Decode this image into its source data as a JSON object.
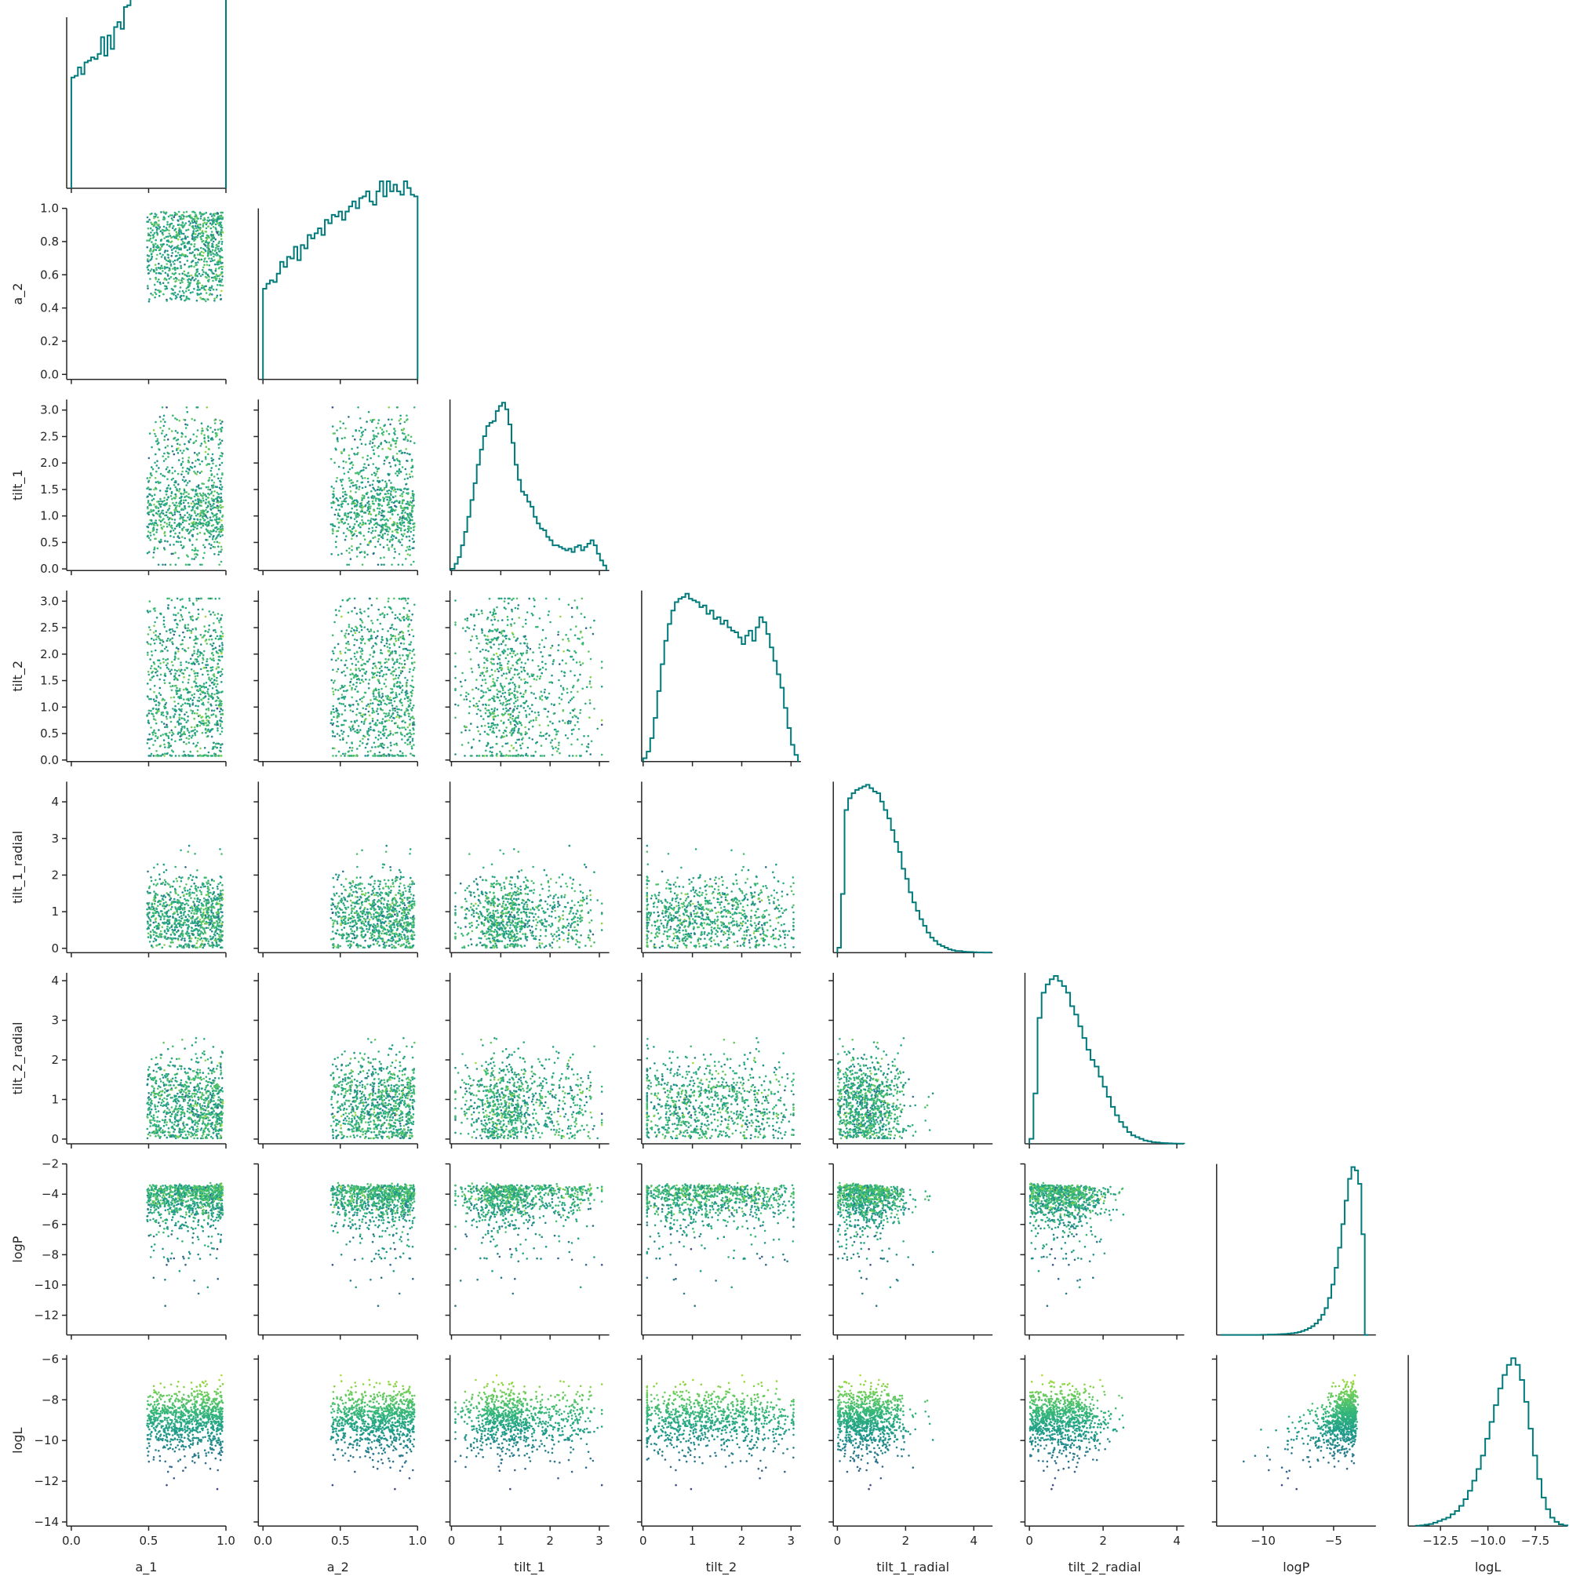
{
  "chart_data": {
    "type": "scatter",
    "kind": "corner-plot",
    "title": "",
    "variables": [
      "a_1",
      "a_2",
      "tilt_1",
      "tilt_2",
      "tilt_1_radial",
      "tilt_2_radial",
      "logP",
      "logL"
    ],
    "ranges": {
      "a_1": [
        -0.03,
        1.0
      ],
      "a_2": [
        -0.03,
        1.0
      ],
      "tilt_1": [
        -0.03,
        3.2
      ],
      "tilt_2": [
        -0.03,
        3.2
      ],
      "tilt_1_radial": [
        -0.12,
        4.55
      ],
      "tilt_2_radial": [
        -0.12,
        4.2
      ],
      "logP": [
        -13.3,
        -2.0
      ],
      "logL": [
        -14.2,
        -5.8
      ]
    },
    "ticks": {
      "a_1": {
        "values": [
          0,
          0.5,
          1.0
        ],
        "labels": [
          "0.0",
          "0.5",
          "1.0"
        ]
      },
      "a_2": {
        "values": [
          0,
          0.2,
          0.4,
          0.6,
          0.8,
          1.0
        ],
        "labels": [
          "0.0",
          "0.2",
          "0.4",
          "0.6",
          "0.8",
          "1.0"
        ]
      },
      "a_2_x": {
        "values": [
          0,
          0.5,
          1.0
        ],
        "labels": [
          "0.0",
          "0.5",
          "1.0"
        ]
      },
      "tilt_1": {
        "values": [
          0,
          0.5,
          1.0,
          1.5,
          2.0,
          2.5,
          3.0
        ],
        "labels": [
          "0.0",
          "0.5",
          "1.0",
          "1.5",
          "2.0",
          "2.5",
          "3.0"
        ]
      },
      "tilt_1_x": {
        "values": [
          0,
          1,
          2,
          3
        ],
        "labels": [
          "0",
          "1",
          "2",
          "3"
        ]
      },
      "tilt_2": {
        "values": [
          0,
          0.5,
          1.0,
          1.5,
          2.0,
          2.5,
          3.0
        ],
        "labels": [
          "0.0",
          "0.5",
          "1.0",
          "1.5",
          "2.0",
          "2.5",
          "3.0"
        ]
      },
      "tilt_2_x": {
        "values": [
          0,
          1,
          2,
          3
        ],
        "labels": [
          "0",
          "1",
          "2",
          "3"
        ]
      },
      "tilt_1_radial": {
        "values": [
          0,
          1,
          2,
          3,
          4
        ],
        "labels": [
          "0",
          "1",
          "2",
          "3",
          "4"
        ]
      },
      "tilt_1_radial_x": {
        "values": [
          0,
          2,
          4
        ],
        "labels": [
          "0",
          "2",
          "4"
        ]
      },
      "tilt_2_radial": {
        "values": [
          0,
          1,
          2,
          3,
          4
        ],
        "labels": [
          "0",
          "1",
          "2",
          "3",
          "4"
        ]
      },
      "tilt_2_radial_x": {
        "values": [
          0,
          2,
          4
        ],
        "labels": [
          "0",
          "2",
          "4"
        ]
      },
      "logP": {
        "values": [
          -12,
          -10,
          -8,
          -6,
          -4,
          -2
        ],
        "labels": [
          "−12",
          "−10",
          "−8",
          "−6",
          "−4",
          "−2"
        ]
      },
      "logP_x": {
        "values": [
          -10,
          -5
        ],
        "labels": [
          "−10",
          "−5"
        ]
      },
      "logL": {
        "values": [
          -14,
          -12,
          -10,
          -8,
          -6
        ],
        "labels": [
          "−14",
          "−12",
          "−10",
          "−8",
          "−6"
        ]
      },
      "logL_x": {
        "values": [
          -12.5,
          -10.0,
          -7.5
        ],
        "labels": [
          "−12.5",
          "−10.0",
          "−7.5"
        ]
      }
    },
    "histograms": {
      "a_1": [
        0.66,
        0.67,
        0.72,
        0.68,
        0.75,
        0.76,
        0.78,
        0.77,
        0.8,
        0.9,
        0.79,
        0.91,
        0.83,
        0.96,
        0.99,
        0.95,
        1.08,
        1.09,
        1.14,
        1.13,
        1.25,
        1.21,
        1.3,
        1.27,
        1.21,
        1.3,
        1.2,
        1.28,
        1.29,
        1.3,
        1.25,
        1.33,
        1.32,
        1.33,
        1.38,
        1.35,
        1.36,
        1.35,
        1.38,
        1.32,
        1.34,
        1.33,
        1.32,
        1.37,
        1.31,
        1.3,
        1.29
      ],
      "a_2": [
        0.54,
        0.57,
        0.59,
        0.58,
        0.63,
        0.7,
        0.67,
        0.73,
        0.72,
        0.79,
        0.71,
        0.8,
        0.78,
        0.86,
        0.84,
        0.87,
        0.9,
        0.86,
        0.95,
        0.93,
        0.98,
        0.97,
        1.0,
        0.95,
        1.0,
        1.03,
        1.06,
        1.02,
        1.08,
        1.09,
        1.12,
        1.06,
        1.04,
        1.12,
        1.18,
        1.09,
        1.18,
        1.12,
        1.16,
        1.12,
        1.1,
        1.18,
        1.14,
        1.1,
        1.09
      ],
      "tilt_1": [
        0.01,
        0.04,
        0.08,
        0.15,
        0.23,
        0.32,
        0.42,
        0.52,
        0.63,
        0.72,
        0.8,
        0.86,
        0.88,
        0.89,
        0.95,
        0.98,
        1.0,
        0.96,
        0.87,
        0.76,
        0.63,
        0.54,
        0.47,
        0.45,
        0.41,
        0.38,
        0.32,
        0.28,
        0.25,
        0.24,
        0.2,
        0.18,
        0.15,
        0.15,
        0.14,
        0.13,
        0.12,
        0.13,
        0.11,
        0.14,
        0.15,
        0.12,
        0.14,
        0.16,
        0.18,
        0.15,
        0.1,
        0.06,
        0.03
      ],
      "tilt_2": [
        0.02,
        0.06,
        0.14,
        0.26,
        0.42,
        0.58,
        0.72,
        0.82,
        0.9,
        0.95,
        0.97,
        0.98,
        1.0,
        0.97,
        0.96,
        0.95,
        0.92,
        0.93,
        0.88,
        0.9,
        0.85,
        0.86,
        0.82,
        0.84,
        0.8,
        0.78,
        0.77,
        0.74,
        0.7,
        0.75,
        0.78,
        0.72,
        0.8,
        0.86,
        0.83,
        0.76,
        0.68,
        0.6,
        0.52,
        0.44,
        0.32,
        0.2,
        0.1,
        0.04
      ],
      "tilt_1_radial": [
        0.03,
        0.35,
        0.85,
        0.92,
        0.95,
        0.97,
        0.98,
        0.99,
        1.0,
        0.98,
        0.96,
        0.95,
        0.9,
        0.85,
        0.8,
        0.73,
        0.66,
        0.6,
        0.5,
        0.44,
        0.36,
        0.3,
        0.25,
        0.2,
        0.16,
        0.12,
        0.09,
        0.07,
        0.05,
        0.04,
        0.03,
        0.02,
        0.015,
        0.01,
        0.01,
        0.006,
        0.005,
        0.004,
        0.003,
        0.002,
        0.002,
        0.001,
        0.001
      ],
      "tilt_2_radial": [
        0.03,
        0.3,
        0.75,
        0.9,
        0.95,
        0.98,
        1.0,
        0.97,
        0.94,
        0.9,
        0.82,
        0.77,
        0.7,
        0.63,
        0.56,
        0.5,
        0.46,
        0.4,
        0.34,
        0.28,
        0.22,
        0.17,
        0.13,
        0.1,
        0.07,
        0.05,
        0.04,
        0.03,
        0.02,
        0.015,
        0.01,
        0.008,
        0.005,
        0.004,
        0.003,
        0.002,
        0.001,
        0.001
      ],
      "logP": [
        0.0,
        0.0,
        0.0,
        0.0,
        0.0,
        0.0,
        0.0,
        0.0,
        0.0,
        0.0,
        0.0,
        0.0,
        0.001,
        0.001,
        0.002,
        0.002,
        0.003,
        0.004,
        0.005,
        0.006,
        0.008,
        0.01,
        0.013,
        0.017,
        0.023,
        0.03,
        0.04,
        0.052,
        0.068,
        0.09,
        0.12,
        0.16,
        0.22,
        0.3,
        0.4,
        0.52,
        0.66,
        0.8,
        0.93,
        1.0,
        0.98,
        0.9,
        0.6,
        0.0
      ],
      "logL": [
        0.002,
        0.004,
        0.008,
        0.012,
        0.02,
        0.03,
        0.04,
        0.05,
        0.07,
        0.09,
        0.12,
        0.16,
        0.21,
        0.27,
        0.34,
        0.42,
        0.52,
        0.62,
        0.72,
        0.82,
        0.9,
        0.96,
        1.0,
        0.96,
        0.87,
        0.74,
        0.58,
        0.42,
        0.28,
        0.17,
        0.1,
        0.05,
        0.025,
        0.01,
        0.004
      ]
    },
    "histogram_bins": {
      "a_1": [
        0.0,
        1.0
      ],
      "a_2": [
        0.0,
        1.0
      ],
      "tilt_1": [
        0.0,
        3.14
      ],
      "tilt_2": [
        0.0,
        3.14
      ],
      "tilt_1_radial": [
        0.0,
        4.5
      ],
      "tilt_2_radial": [
        0.0,
        4.2
      ],
      "logP": [
        -13.0,
        -2.55
      ],
      "logL": [
        -13.8,
        -5.8
      ]
    },
    "color_variable": "logL",
    "grid": false,
    "legend": "none"
  }
}
